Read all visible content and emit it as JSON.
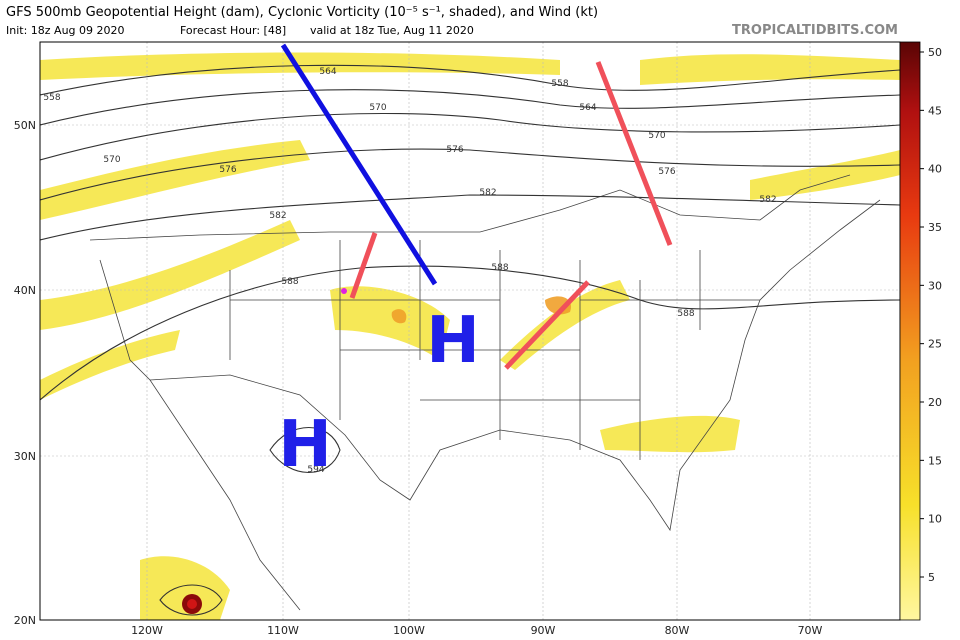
{
  "header": {
    "title": "GFS 500mb Geopotential Height (dam), Cyclonic Vorticity (10⁻⁵ s⁻¹, shaded), and Wind (kt)",
    "init": "Init: 18z Aug 09 2020",
    "forecast_hour": "Forecast Hour: [48]",
    "valid": "valid at 18z Tue, Aug 11 2020",
    "watermark": "TROPICALTIDBITS.COM"
  },
  "map": {
    "lat_labels": [
      "50N",
      "40N",
      "30N",
      "20N"
    ],
    "lon_labels": [
      "120W",
      "110W",
      "100W",
      "90W",
      "80W",
      "70W"
    ],
    "contour_labels": [
      "564",
      "558",
      "564",
      "570",
      "570",
      "576",
      "576",
      "576",
      "582",
      "582",
      "582",
      "588",
      "588",
      "588",
      "594",
      "558",
      "570"
    ],
    "highs": [
      "H",
      "H"
    ]
  },
  "colorbar": {
    "ticks": [
      5,
      10,
      15,
      20,
      25,
      30,
      35,
      40,
      45,
      50
    ]
  }
}
